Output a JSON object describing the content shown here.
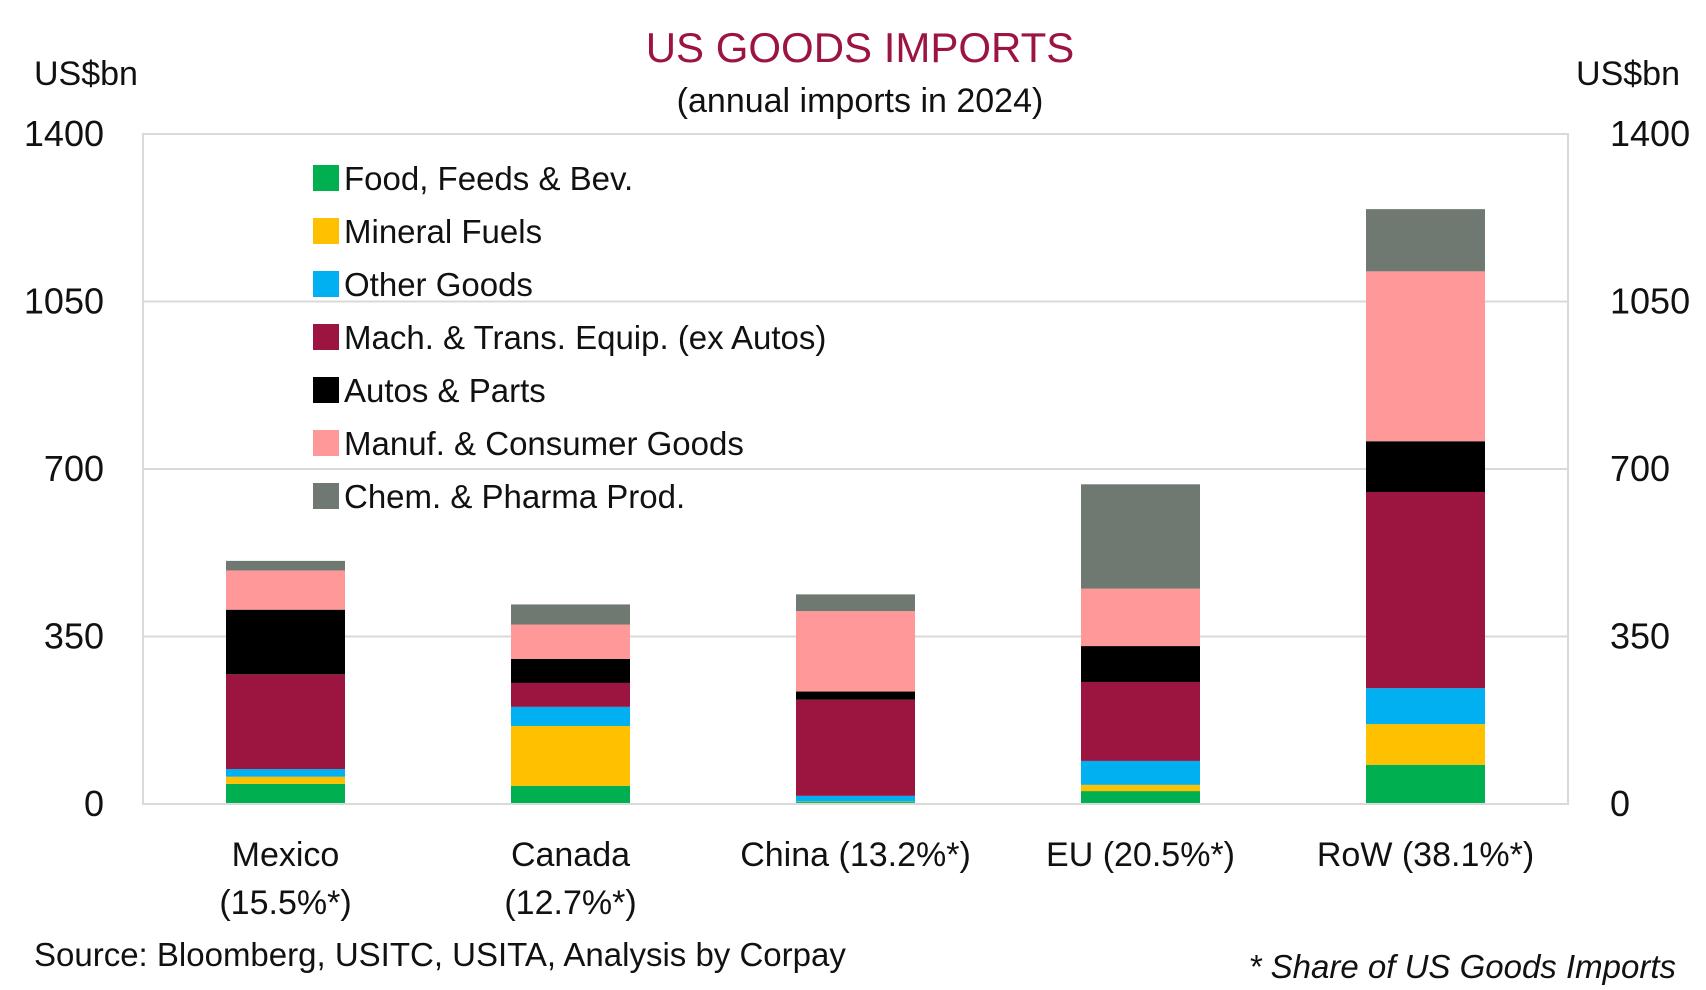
{
  "chart_data": {
    "type": "bar",
    "stacked": true,
    "title": "US GOODS IMPORTS",
    "subtitle": "(annual imports in 2024)",
    "ylabel_left": "US$bn",
    "ylabel_right": "US$bn",
    "ylim": [
      0,
      1400
    ],
    "yticks": [
      0,
      350,
      700,
      1050,
      1400
    ],
    "grid": true,
    "legend_position": "top-left",
    "categories": [
      [
        "Mexico",
        "(15.5%*)"
      ],
      [
        "Canada",
        "(12.7%*)"
      ],
      [
        "China (13.2%*)"
      ],
      [
        "EU (20.5%*)"
      ],
      [
        "RoW (38.1%*)"
      ]
    ],
    "series": [
      {
        "name": "Food, Feeds & Bev.",
        "color": "#00b050",
        "values": [
          42,
          38,
          4,
          27,
          82
        ]
      },
      {
        "name": "Mineral Fuels",
        "color": "#ffc000",
        "values": [
          15,
          125,
          1,
          13,
          85
        ]
      },
      {
        "name": "Other Goods",
        "color": "#00b0f0",
        "values": [
          16,
          40,
          12,
          50,
          75
        ]
      },
      {
        "name": "Mach. & Trans. Equip. (ex Autos)",
        "color": "#9b1540",
        "values": [
          198,
          50,
          201,
          165,
          410
        ]
      },
      {
        "name": "Autos & Parts",
        "color": "#000000",
        "values": [
          135,
          50,
          17,
          75,
          106
        ]
      },
      {
        "name": "Manuf. & Consumer Goods",
        "color": "#ff9999",
        "values": [
          82,
          72,
          168,
          120,
          355
        ]
      },
      {
        "name": "Chem. & Pharma Prod.",
        "color": "#707872",
        "values": [
          20,
          42,
          35,
          218,
          130
        ]
      }
    ]
  },
  "footer": {
    "source": "Source: Bloomberg, USITC, USITA, Analysis by Corpay",
    "note": "* Share of US Goods Imports"
  }
}
